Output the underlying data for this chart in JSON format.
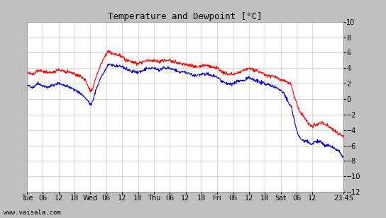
{
  "title": "Temperature and Dewpoint [°C]",
  "ylim": [
    -12,
    10
  ],
  "yticks": [
    -12,
    -10,
    -8,
    -6,
    -4,
    -2,
    0,
    2,
    4,
    6,
    8,
    10
  ],
  "background_color": "#ffffff",
  "grid_color": "#c8c8c8",
  "line_width": 0.8,
  "watermark": "www.vaisala.com",
  "red_color": "#ff0000",
  "blue_color": "#0000cc",
  "x_tick_labels": [
    "Tue",
    "06",
    "12",
    "18",
    "Wed",
    "06",
    "12",
    "18",
    "Thu",
    "06",
    "12",
    "18",
    "Fri",
    "06",
    "12",
    "18",
    "Sat",
    "06",
    "12",
    "23:45"
  ],
  "x_tick_positions": [
    0,
    6,
    12,
    18,
    24,
    30,
    36,
    42,
    48,
    54,
    60,
    66,
    72,
    78,
    84,
    90,
    96,
    102,
    108,
    119.75
  ],
  "total_hours": 119.75,
  "temp_waypoints": [
    [
      0,
      3.5
    ],
    [
      2,
      3.2
    ],
    [
      4,
      3.8
    ],
    [
      6,
      3.6
    ],
    [
      8,
      3.4
    ],
    [
      10,
      3.5
    ],
    [
      12,
      3.8
    ],
    [
      14,
      3.6
    ],
    [
      16,
      3.5
    ],
    [
      18,
      3.3
    ],
    [
      20,
      3.0
    ],
    [
      22,
      2.5
    ],
    [
      23,
      1.8
    ],
    [
      24,
      1.0
    ],
    [
      25,
      1.5
    ],
    [
      26,
      2.8
    ],
    [
      28,
      4.5
    ],
    [
      30,
      5.8
    ],
    [
      31,
      6.2
    ],
    [
      32,
      6.0
    ],
    [
      34,
      5.8
    ],
    [
      36,
      5.5
    ],
    [
      38,
      5.0
    ],
    [
      40,
      4.8
    ],
    [
      42,
      4.6
    ],
    [
      44,
      4.8
    ],
    [
      46,
      5.0
    ],
    [
      48,
      5.0
    ],
    [
      50,
      4.8
    ],
    [
      52,
      5.0
    ],
    [
      54,
      5.0
    ],
    [
      56,
      4.8
    ],
    [
      58,
      4.6
    ],
    [
      60,
      4.5
    ],
    [
      62,
      4.3
    ],
    [
      64,
      4.2
    ],
    [
      66,
      4.3
    ],
    [
      68,
      4.4
    ],
    [
      70,
      4.2
    ],
    [
      72,
      4.0
    ],
    [
      73,
      3.8
    ],
    [
      74,
      3.5
    ],
    [
      76,
      3.3
    ],
    [
      78,
      3.2
    ],
    [
      80,
      3.5
    ],
    [
      82,
      3.8
    ],
    [
      84,
      4.0
    ],
    [
      86,
      3.8
    ],
    [
      88,
      3.5
    ],
    [
      90,
      3.2
    ],
    [
      92,
      3.0
    ],
    [
      94,
      2.8
    ],
    [
      96,
      2.5
    ],
    [
      98,
      2.3
    ],
    [
      100,
      1.8
    ],
    [
      101,
      0.5
    ],
    [
      102,
      -0.5
    ],
    [
      103,
      -1.5
    ],
    [
      104,
      -2.0
    ],
    [
      105,
      -2.5
    ],
    [
      106,
      -3.0
    ],
    [
      107,
      -3.3
    ],
    [
      108,
      -3.5
    ],
    [
      109,
      -3.3
    ],
    [
      110,
      -3.2
    ],
    [
      111,
      -3.0
    ],
    [
      112,
      -3.2
    ],
    [
      113,
      -3.3
    ],
    [
      114,
      -3.5
    ],
    [
      115,
      -3.8
    ],
    [
      116,
      -4.0
    ],
    [
      117,
      -4.2
    ],
    [
      118,
      -4.5
    ],
    [
      119,
      -4.6
    ],
    [
      119.75,
      -4.8
    ]
  ],
  "dew_waypoints": [
    [
      0,
      1.8
    ],
    [
      2,
      1.5
    ],
    [
      4,
      2.0
    ],
    [
      6,
      1.8
    ],
    [
      8,
      1.5
    ],
    [
      10,
      1.8
    ],
    [
      12,
      2.0
    ],
    [
      14,
      1.8
    ],
    [
      16,
      1.5
    ],
    [
      18,
      1.2
    ],
    [
      20,
      0.8
    ],
    [
      22,
      0.2
    ],
    [
      23,
      -0.3
    ],
    [
      24,
      -0.8
    ],
    [
      25,
      -0.2
    ],
    [
      26,
      1.2
    ],
    [
      28,
      2.8
    ],
    [
      30,
      4.0
    ],
    [
      31,
      4.5
    ],
    [
      32,
      4.5
    ],
    [
      34,
      4.3
    ],
    [
      36,
      4.2
    ],
    [
      38,
      3.8
    ],
    [
      40,
      3.6
    ],
    [
      42,
      3.5
    ],
    [
      44,
      3.7
    ],
    [
      46,
      4.0
    ],
    [
      48,
      4.0
    ],
    [
      50,
      3.8
    ],
    [
      52,
      4.0
    ],
    [
      54,
      4.0
    ],
    [
      56,
      3.8
    ],
    [
      58,
      3.5
    ],
    [
      60,
      3.5
    ],
    [
      62,
      3.2
    ],
    [
      64,
      3.0
    ],
    [
      66,
      3.2
    ],
    [
      68,
      3.3
    ],
    [
      70,
      3.0
    ],
    [
      72,
      2.8
    ],
    [
      73,
      2.5
    ],
    [
      74,
      2.2
    ],
    [
      76,
      2.0
    ],
    [
      78,
      2.0
    ],
    [
      80,
      2.3
    ],
    [
      82,
      2.5
    ],
    [
      84,
      2.8
    ],
    [
      86,
      2.5
    ],
    [
      88,
      2.2
    ],
    [
      90,
      2.0
    ],
    [
      92,
      1.8
    ],
    [
      94,
      1.5
    ],
    [
      96,
      1.2
    ],
    [
      97,
      0.8
    ],
    [
      98,
      0.2
    ],
    [
      99,
      -0.5
    ],
    [
      100,
      -1.0
    ],
    [
      101,
      -2.5
    ],
    [
      102,
      -4.0
    ],
    [
      103,
      -5.0
    ],
    [
      104,
      -5.2
    ],
    [
      105,
      -5.5
    ],
    [
      106,
      -5.5
    ],
    [
      107,
      -5.8
    ],
    [
      108,
      -5.8
    ],
    [
      109,
      -5.5
    ],
    [
      110,
      -5.5
    ],
    [
      111,
      -5.5
    ],
    [
      112,
      -5.8
    ],
    [
      113,
      -6.0
    ],
    [
      114,
      -6.0
    ],
    [
      115,
      -6.2
    ],
    [
      116,
      -6.3
    ],
    [
      117,
      -6.5
    ],
    [
      118,
      -6.8
    ],
    [
      119,
      -7.2
    ],
    [
      119.75,
      -7.5
    ]
  ]
}
